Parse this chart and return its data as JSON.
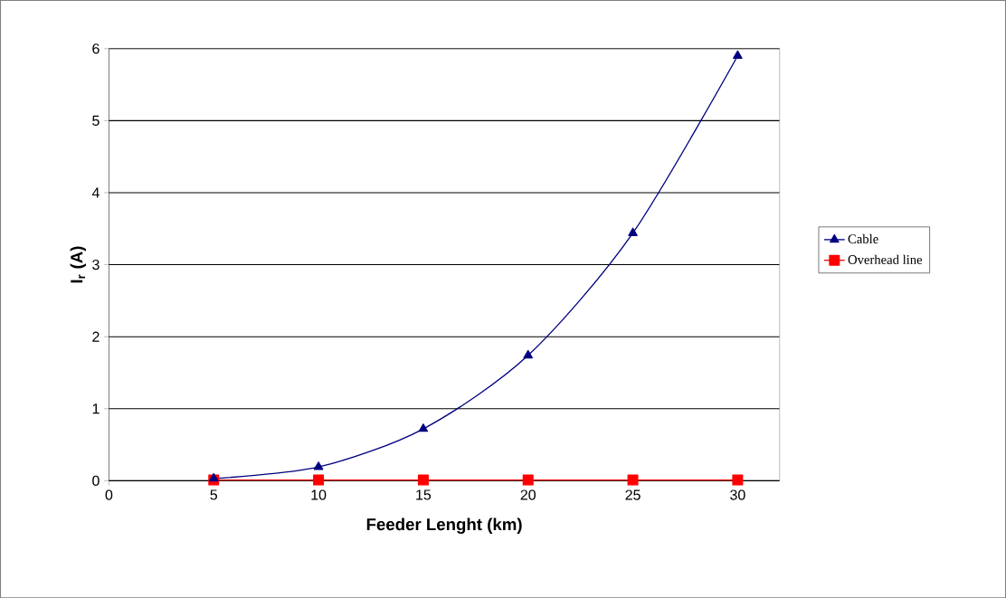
{
  "chart_data": {
    "type": "line",
    "xlabel": "Feeder Lenght (km)",
    "ylabel": "I$_{r}$ (A)",
    "x": [
      5,
      10,
      15,
      20,
      25,
      30
    ],
    "series": [
      {
        "name": "Cable",
        "color": "#000080",
        "marker": "triangle",
        "values": [
          0.03,
          0.19,
          0.72,
          1.74,
          3.44,
          5.9
        ]
      },
      {
        "name": "Overhead line",
        "color": "#ff0000",
        "marker": "square",
        "values": [
          0.01,
          0.01,
          0.01,
          0.01,
          0.01,
          0.01
        ]
      }
    ],
    "xlim": [
      0,
      32
    ],
    "xticks": [
      0,
      5,
      10,
      15,
      20,
      25,
      30
    ],
    "ylim": [
      0,
      6
    ],
    "yticks": [
      0,
      1,
      2,
      3,
      4,
      5,
      6
    ],
    "grid": "y",
    "legend": "right",
    "line_style": "solid"
  }
}
